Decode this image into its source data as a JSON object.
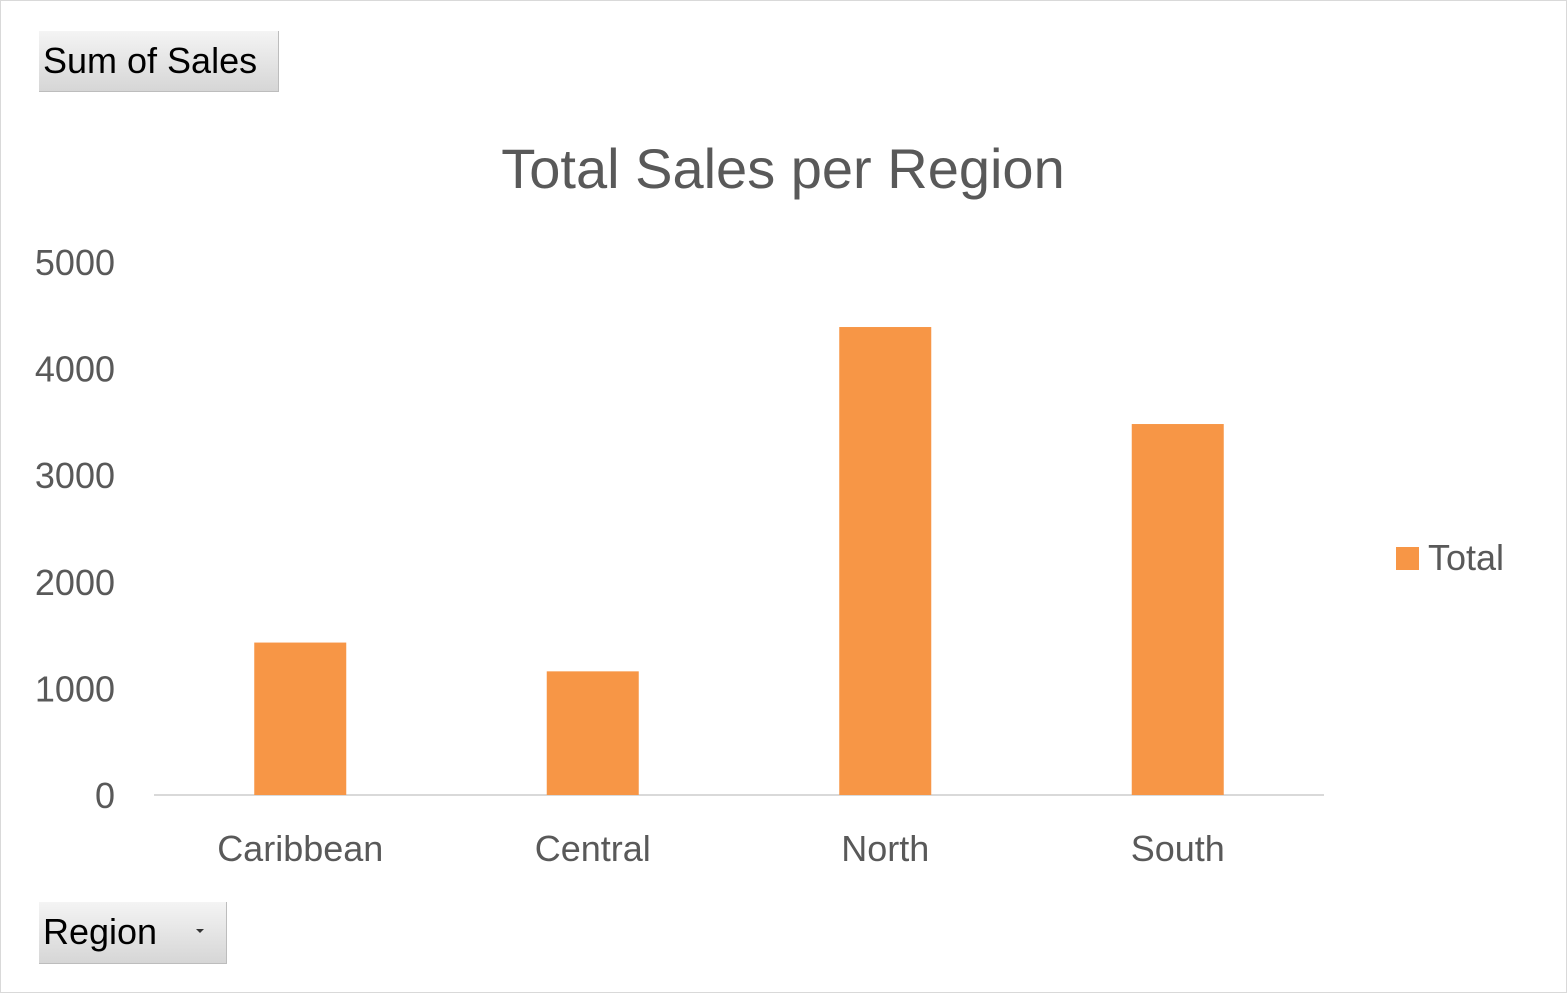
{
  "pivot_fields": {
    "values_field": "Sum of Sales",
    "axis_field": "Region"
  },
  "colors": {
    "bar": "#F79646",
    "text": "#595959",
    "axis_line": "#d9d9d9",
    "border": "#d9d9d9"
  },
  "icons": {
    "axis_dropdown": "chevron-down-icon"
  },
  "chart_data": {
    "type": "bar",
    "title": "Total Sales per Region",
    "xlabel": "",
    "ylabel": "",
    "categories": [
      "Caribbean",
      "Central",
      "North",
      "South"
    ],
    "series": [
      {
        "name": "Total",
        "values": [
          1430,
          1160,
          4390,
          3480
        ]
      }
    ],
    "ylim": [
      0,
      5000
    ],
    "yticks": [
      0,
      1000,
      2000,
      3000,
      4000,
      5000
    ],
    "grid": false,
    "legend": "right"
  }
}
